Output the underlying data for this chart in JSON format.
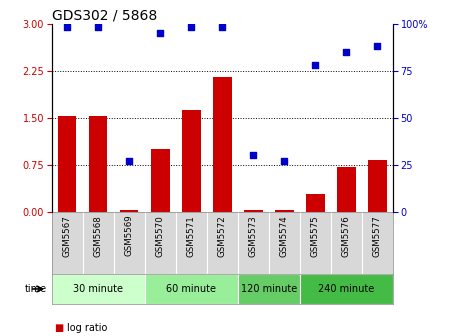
{
  "title": "GDS302 / 5868",
  "samples": [
    "GSM5567",
    "GSM5568",
    "GSM5569",
    "GSM5570",
    "GSM5571",
    "GSM5572",
    "GSM5573",
    "GSM5574",
    "GSM5575",
    "GSM5576",
    "GSM5577"
  ],
  "log_ratio": [
    1.52,
    1.52,
    0.03,
    1.0,
    1.62,
    2.15,
    0.02,
    0.03,
    0.28,
    0.72,
    0.82
  ],
  "percentile": [
    98,
    98,
    27,
    95,
    98,
    98,
    30,
    27,
    78,
    85,
    88
  ],
  "groups": [
    {
      "label": "30 minute",
      "start": 0,
      "end": 3,
      "color": "#ccffcc"
    },
    {
      "label": "60 minute",
      "start": 3,
      "end": 6,
      "color": "#99ee99"
    },
    {
      "label": "120 minute",
      "start": 6,
      "end": 8,
      "color": "#66cc66"
    },
    {
      "label": "240 minute",
      "start": 8,
      "end": 11,
      "color": "#44bb44"
    }
  ],
  "ylim_left": [
    0,
    3
  ],
  "ylim_right": [
    0,
    100
  ],
  "yticks_left": [
    0,
    0.75,
    1.5,
    2.25,
    3
  ],
  "yticks_right": [
    0,
    25,
    50,
    75,
    100
  ],
  "bar_color": "#cc0000",
  "dot_color": "#0000cc",
  "bg_color": "#d8d8d8",
  "title_fontsize": 10,
  "tick_fontsize": 7,
  "legend_fontsize": 7
}
